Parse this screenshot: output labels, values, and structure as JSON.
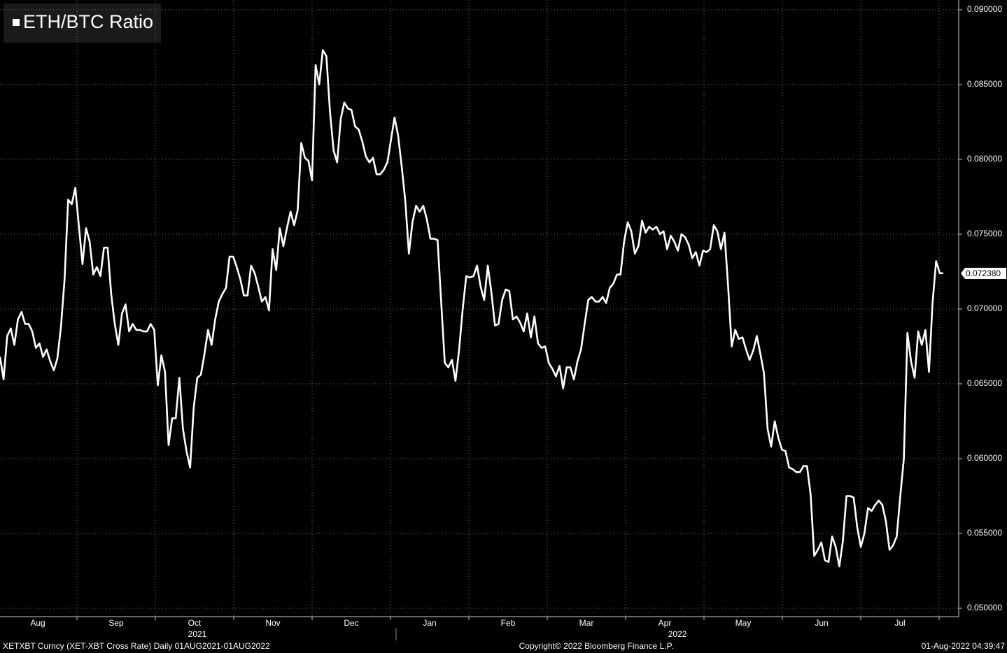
{
  "chart_data": {
    "type": "line",
    "legend": "ETH/BTC Ratio",
    "months": [
      "Aug",
      "Sep",
      "Oct",
      "Nov",
      "Dec",
      "Jan",
      "Feb",
      "Mar",
      "Apr",
      "May",
      "Jun",
      "Jul"
    ],
    "years": [
      "2021",
      "2022"
    ],
    "footer_left": "XETXBT Curncy (XET-XBT Cross Rate)  Daily 01AUG2021-01AUG2022",
    "footer_center": "Copyright© 2022 Bloomberg Finance L.P.",
    "footer_right": "01-Aug-2022 04:39:47",
    "ylim": [
      0.04944,
      0.09065
    ],
    "yticks": [
      {
        "value": 0.05,
        "label": "0.050000"
      },
      {
        "value": 0.055,
        "label": "0.055000"
      },
      {
        "value": 0.06,
        "label": "0.060000"
      },
      {
        "value": 0.065,
        "label": "0.065000"
      },
      {
        "value": 0.07,
        "label": "0.070000"
      },
      {
        "value": 0.075,
        "label": "0.075000"
      },
      {
        "value": 0.08,
        "label": "0.080000"
      },
      {
        "value": 0.085,
        "label": "0.085000"
      },
      {
        "value": 0.09,
        "label": "0.090000"
      }
    ],
    "grid": true,
    "series": [
      {
        "name": "ETH/BTC Ratio",
        "color": "#ffffff",
        "last_label": "0.072380",
        "values": [
          0.0668,
          0.0653,
          0.0682,
          0.0687,
          0.0676,
          0.0693,
          0.0698,
          0.069,
          0.069,
          0.0685,
          0.0674,
          0.0677,
          0.0668,
          0.0673,
          0.0665,
          0.0659,
          0.0667,
          0.0688,
          0.072,
          0.0773,
          0.077,
          0.0781,
          0.0755,
          0.073,
          0.0754,
          0.0745,
          0.0723,
          0.0728,
          0.0722,
          0.0741,
          0.0741,
          0.071,
          0.069,
          0.0676,
          0.0697,
          0.0703,
          0.0685,
          0.069,
          0.0686,
          0.0686,
          0.0685,
          0.0685,
          0.069,
          0.0686,
          0.0649,
          0.0669,
          0.0658,
          0.0609,
          0.0627,
          0.0627,
          0.0654,
          0.062,
          0.0605,
          0.0594,
          0.0634,
          0.0654,
          0.0656,
          0.067,
          0.0686,
          0.0676,
          0.0693,
          0.0705,
          0.071,
          0.0714,
          0.0735,
          0.0735,
          0.0728,
          0.072,
          0.0709,
          0.0709,
          0.0729,
          0.0724,
          0.0715,
          0.0705,
          0.0708,
          0.0699,
          0.074,
          0.0726,
          0.0754,
          0.0742,
          0.0754,
          0.0765,
          0.0756,
          0.0766,
          0.0811,
          0.0801,
          0.0799,
          0.0786,
          0.0863,
          0.085,
          0.0873,
          0.0869,
          0.0832,
          0.0806,
          0.0798,
          0.0827,
          0.0838,
          0.0834,
          0.0833,
          0.0822,
          0.082,
          0.0812,
          0.0802,
          0.0798,
          0.0801,
          0.079,
          0.079,
          0.0793,
          0.0798,
          0.0813,
          0.0828,
          0.0816,
          0.0795,
          0.0772,
          0.0737,
          0.0758,
          0.0769,
          0.0765,
          0.0769,
          0.076,
          0.0747,
          0.0747,
          0.0746,
          0.0705,
          0.0664,
          0.0661,
          0.0666,
          0.0652,
          0.0673,
          0.07,
          0.0722,
          0.0721,
          0.0722,
          0.0729,
          0.0715,
          0.0706,
          0.0729,
          0.0711,
          0.0689,
          0.069,
          0.0706,
          0.0713,
          0.0712,
          0.0693,
          0.0695,
          0.0691,
          0.0685,
          0.0697,
          0.0681,
          0.0695,
          0.0677,
          0.0674,
          0.0675,
          0.0664,
          0.066,
          0.0655,
          0.0662,
          0.0647,
          0.0661,
          0.0661,
          0.0653,
          0.0665,
          0.0673,
          0.069,
          0.0706,
          0.0708,
          0.0705,
          0.0705,
          0.0708,
          0.0704,
          0.0714,
          0.0717,
          0.0723,
          0.0723,
          0.0745,
          0.0758,
          0.0752,
          0.0737,
          0.0742,
          0.0759,
          0.0751,
          0.0755,
          0.0753,
          0.0755,
          0.075,
          0.0752,
          0.074,
          0.0749,
          0.0745,
          0.0739,
          0.075,
          0.0748,
          0.0743,
          0.0734,
          0.0738,
          0.0729,
          0.0739,
          0.0738,
          0.074,
          0.0756,
          0.0752,
          0.074,
          0.0751,
          0.0715,
          0.0675,
          0.0686,
          0.068,
          0.0681,
          0.0673,
          0.0666,
          0.0672,
          0.0682,
          0.067,
          0.0657,
          0.062,
          0.0608,
          0.0625,
          0.0614,
          0.0606,
          0.0605,
          0.0594,
          0.0593,
          0.0591,
          0.0591,
          0.0595,
          0.0595,
          0.0576,
          0.0535,
          0.0539,
          0.0544,
          0.0532,
          0.0531,
          0.0548,
          0.0541,
          0.0528,
          0.0545,
          0.0575,
          0.0575,
          0.0574,
          0.0554,
          0.0541,
          0.055,
          0.0567,
          0.0565,
          0.0569,
          0.0572,
          0.0569,
          0.0558,
          0.0539,
          0.0542,
          0.0548,
          0.0575,
          0.06,
          0.0684,
          0.0665,
          0.0654,
          0.0685,
          0.0676,
          0.0686,
          0.0658,
          0.0704,
          0.0732,
          0.0724,
          0.07238
        ]
      }
    ]
  }
}
